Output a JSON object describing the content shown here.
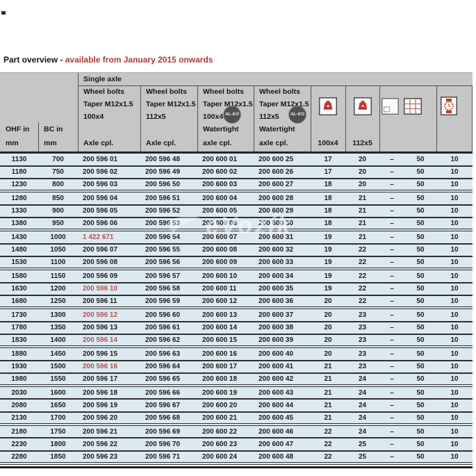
{
  "title": {
    "prefix": "Part overview - ",
    "highlight": "available from January 2015 onwards"
  },
  "watermark": {
    "text": "eVozík"
  },
  "colors": {
    "header_bg": "#c6c6c6",
    "row_bg": "#dde9f1",
    "accent_red": "#a93a36",
    "red_part_number": "#b5524c",
    "icon_red": "#c62f26"
  },
  "table": {
    "group_header": "Single axle",
    "columns": [
      {
        "id": "ohf",
        "lines": [
          "OHF in",
          "mm"
        ]
      },
      {
        "id": "bc",
        "lines": [
          "BC in",
          "mm"
        ]
      },
      {
        "id": "axle_100x4",
        "lines": [
          "Wheel bolts",
          "Taper M12x1.5",
          "100x4",
          "Axle cpl."
        ]
      },
      {
        "id": "axle_112x5",
        "lines": [
          "Wheel bolts",
          "Taper M12x1.5",
          "112x5",
          "Axle cpl."
        ]
      },
      {
        "id": "watertight_100x4",
        "lines": [
          "Wheel bolts",
          "Taper M12x1.5",
          "100x4",
          "Watertight",
          "axle cpl."
        ],
        "badge": "AL-KO"
      },
      {
        "id": "watertight_112x5",
        "lines": [
          "Wheel bolts",
          "Taper M12x1.5",
          "112x5",
          "Watertight",
          "axle cpl."
        ],
        "badge": "AL-KO"
      },
      {
        "id": "weight_100x4",
        "icon": "weight-icon",
        "label": "100x4"
      },
      {
        "id": "weight_112x5",
        "icon": "weight-icon",
        "label": "112x5"
      },
      {
        "id": "packaging",
        "icon": "package-icon"
      },
      {
        "id": "pallet_qty",
        "icon": "pallet-grid-icon"
      },
      {
        "id": "delivery_time",
        "icon": "watch-icon"
      }
    ],
    "rows": [
      {
        "values": [
          "1130",
          "700",
          "200 596 01",
          "200 596 48",
          "200 600 01",
          "200 600 25",
          "17",
          "20",
          "–",
          "50",
          "10"
        ]
      },
      {
        "values": [
          "1180",
          "750",
          "200 596 02",
          "200 596 49",
          "200 600 02",
          "200 600 26",
          "17",
          "20",
          "–",
          "50",
          "10"
        ]
      },
      {
        "values": [
          "1230",
          "800",
          "200 596 03",
          "200 596 50",
          "200 600 03",
          "200 600 27",
          "18",
          "20",
          "–",
          "50",
          "10"
        ]
      },
      {
        "values": [
          "1280",
          "850",
          "200 596 04",
          "200 596 51",
          "200 600 04",
          "200 600 28",
          "18",
          "21",
          "–",
          "50",
          "10"
        ]
      },
      {
        "values": [
          "1330",
          "900",
          "200 596 05",
          "200 596 52",
          "200 600 05",
          "200 600 29",
          "18",
          "21",
          "–",
          "50",
          "10"
        ]
      },
      {
        "values": [
          "1380",
          "950",
          "200 596 06",
          "200 596 53",
          "200 600 06",
          "200 600 30",
          "18",
          "21",
          "–",
          "50",
          "10"
        ]
      },
      {
        "values": [
          "1430",
          "1000",
          "1 422 671",
          "200 596 54",
          "200 600 07",
          "200 600 31",
          "19",
          "21",
          "–",
          "50",
          "10"
        ],
        "red": [
          2
        ]
      },
      {
        "values": [
          "1480",
          "1050",
          "200 596 07",
          "200 596 55",
          "200 600 08",
          "200 600 32",
          "19",
          "22",
          "–",
          "50",
          "10"
        ]
      },
      {
        "values": [
          "1530",
          "1100",
          "200 596 08",
          "200 596 56",
          "200 600 09",
          "200 600 33",
          "19",
          "22",
          "–",
          "50",
          "10"
        ]
      },
      {
        "values": [
          "1580",
          "1150",
          "200 596 09",
          "200 596 57",
          "200 600 10",
          "200 600 34",
          "19",
          "22",
          "–",
          "50",
          "10"
        ]
      },
      {
        "values": [
          "1630",
          "1200",
          "200 596 10",
          "200 596 58",
          "200 600 11",
          "200 600 35",
          "19",
          "22",
          "–",
          "50",
          "10"
        ],
        "red": [
          2
        ]
      },
      {
        "values": [
          "1680",
          "1250",
          "200 596 11",
          "200 596 59",
          "200 600 12",
          "200 600 36",
          "20",
          "22",
          "–",
          "50",
          "10"
        ]
      },
      {
        "values": [
          "1730",
          "1300",
          "200 596 12",
          "200 596 60",
          "200 600 13",
          "200 600 37",
          "20",
          "23",
          "–",
          "50",
          "10"
        ],
        "red": [
          2
        ]
      },
      {
        "values": [
          "1780",
          "1350",
          "200 596 13",
          "200 596 61",
          "200 600 14",
          "200 600 38",
          "20",
          "23",
          "–",
          "50",
          "10"
        ]
      },
      {
        "values": [
          "1830",
          "1400",
          "200 596 14",
          "200 596 62",
          "200 600 15",
          "200 600 39",
          "20",
          "23",
          "–",
          "50",
          "10"
        ],
        "red": [
          2
        ]
      },
      {
        "values": [
          "1880",
          "1450",
          "200 596 15",
          "200 596 63",
          "200 600 16",
          "200 600 40",
          "20",
          "23",
          "–",
          "50",
          "10"
        ]
      },
      {
        "values": [
          "1930",
          "1500",
          "200 596 16",
          "200 596 64",
          "200 600 17",
          "200 600 41",
          "21",
          "23",
          "–",
          "50",
          "10"
        ],
        "red": [
          2
        ]
      },
      {
        "values": [
          "1980",
          "1550",
          "200 596 17",
          "200 596 65",
          "200 600 18",
          "200 600 42",
          "21",
          "24",
          "–",
          "50",
          "10"
        ]
      },
      {
        "values": [
          "2030",
          "1600",
          "200 596 18",
          "200 596 66",
          "200 600 19",
          "200 600 43",
          "21",
          "24",
          "–",
          "50",
          "10"
        ]
      },
      {
        "values": [
          "2080",
          "1650",
          "200 596 19",
          "200 596 67",
          "200 600 20",
          "200 600 44",
          "21",
          "24",
          "–",
          "50",
          "10"
        ]
      },
      {
        "values": [
          "2130",
          "1700",
          "200 596 20",
          "200 596 68",
          "200 600 21",
          "200 600 45",
          "21",
          "24",
          "–",
          "50",
          "10"
        ]
      },
      {
        "values": [
          "2180",
          "1750",
          "200 596 21",
          "200 596 69",
          "200 600 22",
          "200 600 46",
          "22",
          "24",
          "–",
          "50",
          "10"
        ]
      },
      {
        "values": [
          "2230",
          "1800",
          "200 596 22",
          "200 596 70",
          "200 600 23",
          "200 600 47",
          "22",
          "25",
          "–",
          "50",
          "10"
        ]
      },
      {
        "values": [
          "2280",
          "1850",
          "200 596 23",
          "200 596 71",
          "200 600 24",
          "200 600 48",
          "22",
          "25",
          "–",
          "50",
          "10"
        ]
      }
    ]
  }
}
